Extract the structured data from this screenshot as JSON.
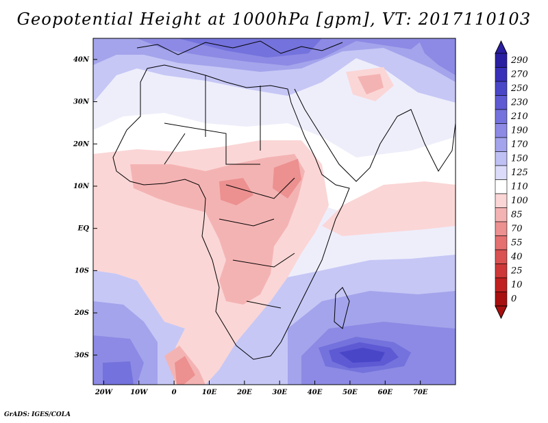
{
  "title": "Geopotential Height at 1000hPa [gpm], VT: 2017110103",
  "credit": "GrADS: IGES/COLA",
  "map": {
    "lon_range": [
      -23,
      80
    ],
    "lat_range": [
      -37,
      45
    ],
    "lon_ticks": [
      {
        "v": -20,
        "label": "20W"
      },
      {
        "v": -10,
        "label": "10W"
      },
      {
        "v": 0,
        "label": "0"
      },
      {
        "v": 10,
        "label": "10E"
      },
      {
        "v": 20,
        "label": "20E"
      },
      {
        "v": 30,
        "label": "30E"
      },
      {
        "v": 40,
        "label": "40E"
      },
      {
        "v": 50,
        "label": "50E"
      },
      {
        "v": 60,
        "label": "60E"
      },
      {
        "v": 70,
        "label": "70E"
      }
    ],
    "lat_ticks": [
      {
        "v": 40,
        "label": "40N"
      },
      {
        "v": 30,
        "label": "30N"
      },
      {
        "v": 20,
        "label": "20N"
      },
      {
        "v": 10,
        "label": "10N"
      },
      {
        "v": 0,
        "label": "EQ"
      },
      {
        "v": -10,
        "label": "10S"
      },
      {
        "v": -20,
        "label": "20S"
      },
      {
        "v": -30,
        "label": "30S"
      }
    ]
  },
  "colorbar": {
    "labels": [
      "290",
      "270",
      "250",
      "230",
      "210",
      "190",
      "170",
      "150",
      "125",
      "110",
      "100",
      "85",
      "70",
      "55",
      "40",
      "25",
      "10",
      "0"
    ],
    "colors": [
      "#2a1fa0",
      "#3830b8",
      "#4a46c8",
      "#5e5ad4",
      "#7472dc",
      "#8c8ae4",
      "#a4a4ec",
      "#bfc0f3",
      "#dcdcfa",
      "#ffffff",
      "#fbd6d6",
      "#f4b3b3",
      "#ec9090",
      "#e47070",
      "#da5252",
      "#ce3838",
      "#c02020",
      "#a81010"
    ]
  }
}
